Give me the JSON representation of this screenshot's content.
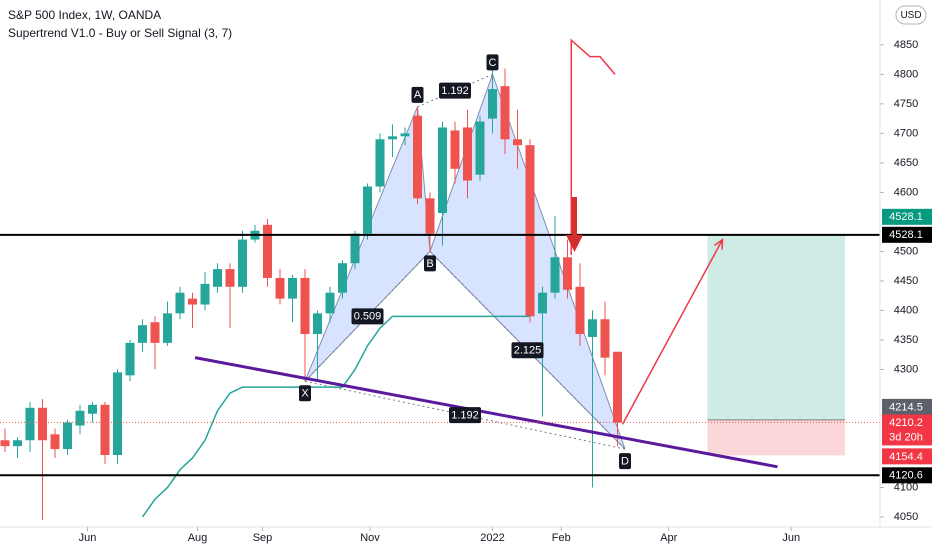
{
  "chart_data": {
    "type": "candlestick",
    "title": "S&P 500 Index, 1W, OANDA",
    "subtitle": "Supertrend V1.0 - Buy or Sell Signal (3, 7)",
    "currency": "USD",
    "xlim": [
      -0.4,
      70
    ],
    "ylim": [
      4033,
      4926
    ],
    "xticks": [
      {
        "value": 6.6,
        "label": "Jun"
      },
      {
        "value": 15.4,
        "label": "Aug"
      },
      {
        "value": 20.6,
        "label": "Sep"
      },
      {
        "value": 29.2,
        "label": "Nov"
      },
      {
        "value": 39,
        "label": "2022"
      },
      {
        "value": 44.5,
        "label": "Feb"
      },
      {
        "value": 53.1,
        "label": "Apr"
      },
      {
        "value": 62.9,
        "label": "Jun"
      }
    ],
    "yticks": [
      4050,
      4100,
      4300,
      4350,
      4400,
      4450,
      4500,
      4600,
      4650,
      4700,
      4750,
      4800,
      4850
    ],
    "up_color": "#26a69a",
    "down_color": "#ef5350",
    "candles": {
      "open": [
        4180,
        4170,
        4180,
        4235,
        4190,
        4165,
        4205,
        4225,
        4240,
        4155,
        4290,
        4345,
        4380,
        4345,
        4395,
        4420,
        4410,
        4440,
        4470,
        4440,
        4520,
        4545,
        4455,
        4420,
        4455,
        4360,
        4395,
        4430,
        4480,
        4530,
        4610,
        4690,
        4695,
        4730,
        4590,
        4565,
        4705,
        4710,
        4630,
        4725,
        4780,
        4690,
        4680,
        4395,
        4430,
        4490,
        4440,
        4355,
        4385,
        4330
      ],
      "high": [
        4200,
        4185,
        4245,
        4250,
        4200,
        4215,
        4240,
        4245,
        4245,
        4300,
        4350,
        4385,
        4390,
        4415,
        4440,
        4430,
        4465,
        4480,
        4480,
        4535,
        4545,
        4555,
        4470,
        4460,
        4470,
        4400,
        4440,
        4485,
        4535,
        4615,
        4700,
        4715,
        4710,
        4745,
        4600,
        4720,
        4720,
        4740,
        4730,
        4815,
        4810,
        4740,
        4690,
        4440,
        4560,
        4520,
        4480,
        4400,
        4415,
        4330
      ],
      "low": [
        4160,
        4150,
        4160,
        4045,
        4150,
        4155,
        4190,
        4210,
        4140,
        4140,
        4280,
        4330,
        4300,
        4340,
        4385,
        4370,
        4400,
        4430,
        4370,
        4430,
        4515,
        4440,
        4410,
        4380,
        4280,
        4280,
        4380,
        4420,
        4470,
        4520,
        4600,
        4660,
        4680,
        4580,
        4500,
        4510,
        4615,
        4590,
        4620,
        4700,
        4665,
        4640,
        4380,
        4220,
        4420,
        4420,
        4340,
        4100,
        4290,
        4170
      ],
      "close": [
        4170,
        4180,
        4235,
        4180,
        4165,
        4210,
        4230,
        4240,
        4155,
        4295,
        4345,
        4375,
        4345,
        4395,
        4430,
        4410,
        4445,
        4470,
        4440,
        4520,
        4535,
        4455,
        4420,
        4455,
        4360,
        4395,
        4430,
        4480,
        4530,
        4610,
        4690,
        4695,
        4700,
        4590,
        4530,
        4710,
        4640,
        4620,
        4720,
        4775,
        4690,
        4680,
        4390,
        4430,
        4490,
        4435,
        4360,
        4385,
        4320,
        4210
      ]
    },
    "supertrend": {
      "color": "#26a69a",
      "values": [
        null,
        null,
        null,
        null,
        null,
        null,
        null,
        null,
        null,
        null,
        null,
        4050,
        4080,
        4100,
        4130,
        4150,
        4180,
        4230,
        4260,
        4270,
        4270,
        4270,
        4270,
        4270,
        4270,
        4270,
        4270,
        4270,
        4300,
        4340,
        4370,
        4390,
        4390,
        4390,
        4390,
        4390,
        4390,
        4390,
        4390,
        4390,
        4390,
        4390,
        4390,
        null,
        null,
        null,
        null,
        null,
        null,
        null
      ]
    },
    "pattern": {
      "points": [
        {
          "label": "X",
          "x": 24,
          "y": 4280
        },
        {
          "label": "A",
          "x": 33,
          "y": 4745
        },
        {
          "label": "B",
          "x": 34,
          "y": 4500
        },
        {
          "label": "C",
          "x": 39,
          "y": 4800
        },
        {
          "label": "D",
          "x": 49.6,
          "y": 4165
        }
      ],
      "ratios": [
        1.192,
        0.509,
        2.125,
        1.192
      ]
    },
    "trendline": {
      "color": "#5b1a9e",
      "x": [
        15.2,
        61.8
      ],
      "y": [
        4320,
        4135
      ]
    },
    "projections": [
      {
        "color": "#f23645",
        "x": [
          49.4,
          57.4
        ],
        "y": [
          4207,
          4520
        ]
      },
      {
        "color": "#f23645",
        "x": [
          45.3,
          45.3,
          46.8,
          47.6,
          48.8
        ],
        "y": [
          4494,
          4858,
          4830,
          4830,
          4800
        ]
      }
    ],
    "levels": [
      4528.1,
      4120.6
    ],
    "position": {
      "x": [
        56.2,
        67.2
      ],
      "target": 4528.1,
      "entry": 4214.5,
      "stop": 4154.4
    },
    "last_price": 4210.2,
    "countdown": "3d 20h"
  }
}
